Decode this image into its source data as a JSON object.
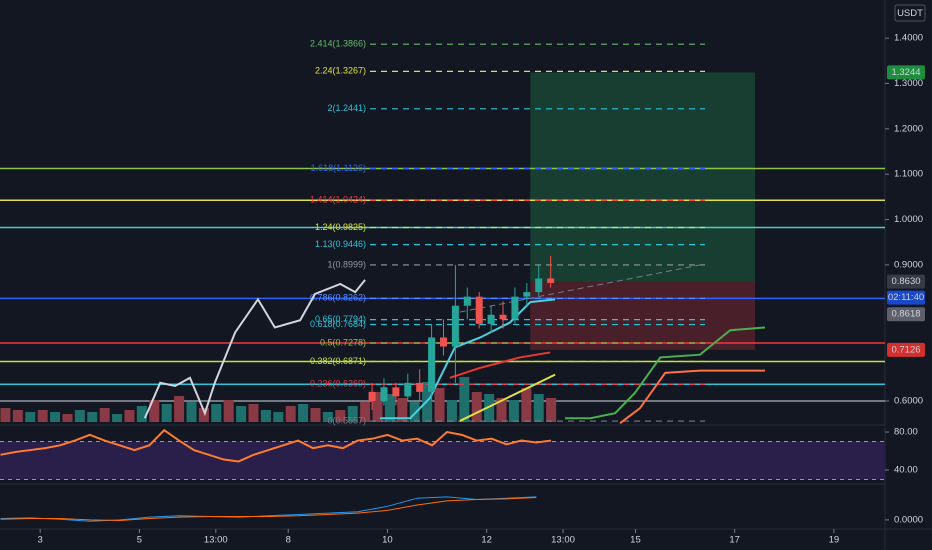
{
  "chart_data": {
    "type": "candlestick",
    "currency": "USDT",
    "xlim": [
      2.19,
      20.03
    ],
    "xticks": [
      3,
      5,
      {
        "value": 6.54,
        "label": "13:00"
      },
      8,
      10,
      12,
      {
        "value": 13.54,
        "label": "13:00"
      },
      15,
      17,
      19
    ],
    "ylim": [
      0.547,
      1.484
    ],
    "yticks": [
      {
        "value": 1.4,
        "label": "1.4000"
      },
      {
        "value": 1.3,
        "label": "1.3000"
      },
      {
        "value": 1.2,
        "label": "1.2000"
      },
      {
        "value": 1.1,
        "label": "1.1000"
      },
      {
        "value": 1.0,
        "label": "1.0000"
      },
      {
        "value": 0.9,
        "label": "0.9000"
      },
      {
        "value": 0.6,
        "label": "0.6000"
      }
    ],
    "up_color": "#26a69a",
    "down_color": "#ef5350",
    "candles": {
      "x": [
        9.69,
        9.93,
        10.17,
        10.41,
        10.65,
        10.89,
        11.13,
        11.37,
        11.61,
        11.85,
        12.09,
        12.33,
        12.57,
        12.81,
        13.05,
        13.29
      ],
      "open": [
        0.62,
        0.6,
        0.63,
        0.61,
        0.64,
        0.62,
        0.74,
        0.72,
        0.81,
        0.83,
        0.77,
        0.79,
        0.78,
        0.83,
        0.84,
        0.87
      ],
      "high": [
        0.64,
        0.65,
        0.64,
        0.66,
        0.67,
        0.77,
        0.78,
        0.9,
        0.85,
        0.84,
        0.81,
        0.82,
        0.85,
        0.86,
        0.9,
        0.92
      ],
      "low": [
        0.58,
        0.59,
        0.59,
        0.6,
        0.6,
        0.6,
        0.7,
        0.64,
        0.78,
        0.76,
        0.75,
        0.76,
        0.77,
        0.81,
        0.83,
        0.85
      ],
      "close": [
        0.6,
        0.63,
        0.61,
        0.64,
        0.62,
        0.74,
        0.72,
        0.81,
        0.83,
        0.77,
        0.79,
        0.78,
        0.83,
        0.84,
        0.87,
        0.86
      ]
    },
    "series": [
      {
        "color": "#d1d4dc",
        "x": [
          5.11,
          5.42,
          5.72,
          6.02,
          6.32,
          6.52,
          6.93,
          7.39,
          7.73,
          8.24,
          8.54,
          9.05,
          9.35,
          9.55
        ],
        "values": [
          0.562,
          0.64,
          0.633,
          0.651,
          0.573,
          0.64,
          0.751,
          0.824,
          0.762,
          0.778,
          0.836,
          0.858,
          0.84,
          0.867
        ]
      },
      {
        "color": "#4dd0e1",
        "x": [
          9.85,
          10.46,
          10.86,
          11.36,
          11.87,
          12.47,
          12.88,
          13.38
        ],
        "values": [
          0.562,
          0.562,
          0.607,
          0.718,
          0.74,
          0.773,
          0.818,
          0.824
        ]
      },
      {
        "color": "#e53935",
        "x": [
          11.26,
          11.87,
          12.67,
          13.28
        ],
        "values": [
          0.651,
          0.673,
          0.696,
          0.707
        ]
      },
      {
        "color": "#4caf50",
        "x": [
          13.58,
          14.09,
          14.59,
          14.99,
          15.5,
          16.3,
          16.91,
          17.61
        ],
        "values": [
          0.562,
          0.562,
          0.573,
          0.618,
          0.696,
          0.702,
          0.756,
          0.762
        ]
      },
      {
        "color": "#ff7043",
        "x": [
          14.69,
          15.09,
          15.6,
          16.3,
          17.61
        ],
        "values": [
          0.551,
          0.584,
          0.662,
          0.667,
          0.667
        ]
      },
      {
        "color": "#e0e040",
        "x": [
          11.46,
          13.38
        ],
        "values": [
          0.556,
          0.658
        ]
      },
      {
        "color": "#787b86",
        "x": [
          11.46,
          16.4
        ],
        "values": [
          0.796,
          0.902
        ]
      }
    ],
    "horizontal_lines": [
      {
        "value": 1.1126,
        "color": "#8bc34a"
      },
      {
        "value": 1.0424,
        "color": "#e0e040"
      },
      {
        "value": 0.9825,
        "color": "#4dd0c0"
      },
      {
        "value": 0.8262,
        "color": "#2962ff"
      },
      {
        "value": 0.7278,
        "color": "#f23645"
      },
      {
        "value": 0.6871,
        "color": "#c6e040"
      },
      {
        "value": 0.6369,
        "color": "#26c6da"
      },
      {
        "value": 0.6,
        "color": "#9598a1"
      }
    ],
    "fib_levels": [
      {
        "label": "2.414(1.3866)",
        "value": 1.3866,
        "color": "#66bb6a"
      },
      {
        "label": "2.24(1.3267)",
        "value": 1.3267,
        "color": "#e0e040"
      },
      {
        "label": "2(1.2441)",
        "value": 1.2441,
        "color": "#26c6da"
      },
      {
        "label": "1.618(1.1126)",
        "value": 1.1126,
        "color": "#2962ff"
      },
      {
        "label": "1.414(1.0424)",
        "value": 1.0424,
        "color": "#f23645"
      },
      {
        "label": "1.24(0.9825)",
        "value": 0.9825,
        "color": "#e0e040"
      },
      {
        "label": "1.13(0.9446)",
        "value": 0.9446,
        "color": "#26c6da"
      },
      {
        "label": "1(0.8999)",
        "value": 0.8999,
        "color": "#9598a1"
      },
      {
        "label": "0.786(0.8262)",
        "value": 0.8262,
        "color": "#5c8dff"
      },
      {
        "label": "0.65(0.7794)",
        "value": 0.7794,
        "color": "#26c6da"
      },
      {
        "label": "0.618(0.7684)",
        "value": 0.7684,
        "color": "#26c6da"
      },
      {
        "label": "0.5(0.7278)",
        "value": 0.7278,
        "color": "#8bc34a"
      },
      {
        "label": "0.382(0.6871)",
        "value": 0.6871,
        "color": "#c6e040"
      },
      {
        "label": "0.236(0.6369)",
        "value": 0.6369,
        "color": "#f23645"
      },
      {
        "label": "0(0.5557)",
        "value": 0.5557,
        "color": "#787b86"
      }
    ],
    "position": {
      "x": [
        12.88,
        17.41
      ],
      "target": 1.3244,
      "entry": 0.863,
      "stop": 0.7126
    },
    "price_badges": [
      {
        "value": 1.3244,
        "label": "1.3244",
        "color": "#1e8e3e"
      },
      {
        "value": 0.863,
        "label": "0.8630",
        "color": "#363a45"
      },
      {
        "value": 0.8618,
        "label": "0.8618",
        "color": "#5d606b"
      },
      {
        "value": 0.7126,
        "label": "0.7126",
        "color": "#d32f2f"
      }
    ],
    "countdown": "02:11:40",
    "volume": {
      "x": [
        2.3,
        2.55,
        2.8,
        3.05,
        3.3,
        3.55,
        3.8,
        4.05,
        4.3,
        4.55,
        4.8,
        5.05,
        5.3,
        5.55,
        5.8,
        6.05,
        6.3,
        6.55,
        6.8,
        7.05,
        7.3,
        7.55,
        7.8,
        8.05,
        8.3,
        8.55,
        8.8,
        9.05,
        9.3,
        9.55,
        9.8,
        10.05,
        10.3,
        10.55,
        10.8,
        11.05,
        11.3,
        11.55,
        11.8,
        12.05,
        12.3,
        12.55,
        12.8,
        13.05,
        13.3
      ],
      "values": [
        14,
        12,
        10,
        12,
        10,
        8,
        12,
        10,
        14,
        8,
        12,
        16,
        22,
        18,
        26,
        20,
        14,
        18,
        22,
        16,
        18,
        12,
        10,
        16,
        18,
        14,
        10,
        12,
        16,
        20,
        30,
        28,
        24,
        20,
        40,
        34,
        22,
        45,
        30,
        28,
        24,
        22,
        34,
        28,
        24
      ],
      "colors": [
        "#8a3a44",
        "#8a3a44",
        "#1f6f6c",
        "#8a3a44",
        "#1f6f6c",
        "#8a3a44",
        "#1f6f6c",
        "#1f6f6c",
        "#8a3a44",
        "#1f6f6c",
        "#8a3a44",
        "#1f6f6c",
        "#8a3a44",
        "#1f6f6c",
        "#8a3a44",
        "#1f6f6c",
        "#8a3a44",
        "#1f6f6c",
        "#8a3a44",
        "#1f6f6c",
        "#8a3a44",
        "#1f6f6c",
        "#1f6f6c",
        "#8a3a44",
        "#1f6f6c",
        "#8a3a44",
        "#1f6f6c",
        "#8a3a44",
        "#1f6f6c",
        "#8a3a44",
        "#8a3a44",
        "#1f6f6c",
        "#8a3a44",
        "#1f6f6c",
        "#1f6f6c",
        "#8a3a44",
        "#1f6f6c",
        "#1f6f6c",
        "#8a3a44",
        "#1f6f6c",
        "#8a3a44",
        "#1f6f6c",
        "#8a3a44",
        "#1f6f6c",
        "#8a3a44"
      ],
      "max": 60
    },
    "rsi": {
      "ylim": [
        26.3,
        87.4
      ],
      "yticks": [
        {
          "value": 80,
          "label": "80.00"
        },
        {
          "value": 40,
          "label": "40.00"
        }
      ],
      "bands": [
        30,
        70
      ],
      "color": "#ff7b2e",
      "band_color": "#2a1f4a",
      "x": [
        2.2,
        2.5,
        2.8,
        3.1,
        3.4,
        3.7,
        4.0,
        4.3,
        4.6,
        4.9,
        5.2,
        5.5,
        5.8,
        6.1,
        6.4,
        6.7,
        7.0,
        7.3,
        7.6,
        7.9,
        8.2,
        8.5,
        8.8,
        9.1,
        9.4,
        9.7,
        10.0,
        10.3,
        10.6,
        10.9,
        11.2,
        11.5,
        11.8,
        12.1,
        12.4,
        12.7,
        13.0,
        13.3
      ],
      "values": [
        56,
        59,
        61,
        63,
        66,
        71,
        77,
        71,
        66,
        61,
        66,
        82,
        71,
        61,
        56,
        51,
        49,
        56,
        61,
        66,
        71,
        63,
        66,
        63,
        71,
        73,
        77,
        71,
        73,
        66,
        80,
        77,
        71,
        73,
        67,
        71,
        69,
        71
      ]
    },
    "macd": {
      "ylim": [
        -0.012,
        0.05
      ],
      "yticks": [
        {
          "value": 0,
          "label": "0.0000"
        }
      ],
      "x": [
        2.2,
        2.8,
        3.4,
        4.0,
        4.6,
        5.2,
        5.8,
        6.4,
        7.0,
        7.6,
        8.2,
        8.8,
        9.4,
        10.0,
        10.6,
        11.2,
        11.8,
        12.4,
        13.0
      ],
      "macd": [
        0.002,
        0.003,
        0.001,
        -0.002,
        0.0,
        0.004,
        0.006,
        0.005,
        0.004,
        0.006,
        0.008,
        0.01,
        0.012,
        0.02,
        0.032,
        0.034,
        0.03,
        0.032,
        0.034
      ],
      "signal": [
        0.001,
        0.002,
        0.002,
        0.0,
        -0.001,
        0.002,
        0.004,
        0.005,
        0.005,
        0.005,
        0.006,
        0.008,
        0.01,
        0.014,
        0.022,
        0.028,
        0.03,
        0.031,
        0.033
      ],
      "macd_color": "#2196f3",
      "signal_color": "#ff6d00"
    }
  }
}
